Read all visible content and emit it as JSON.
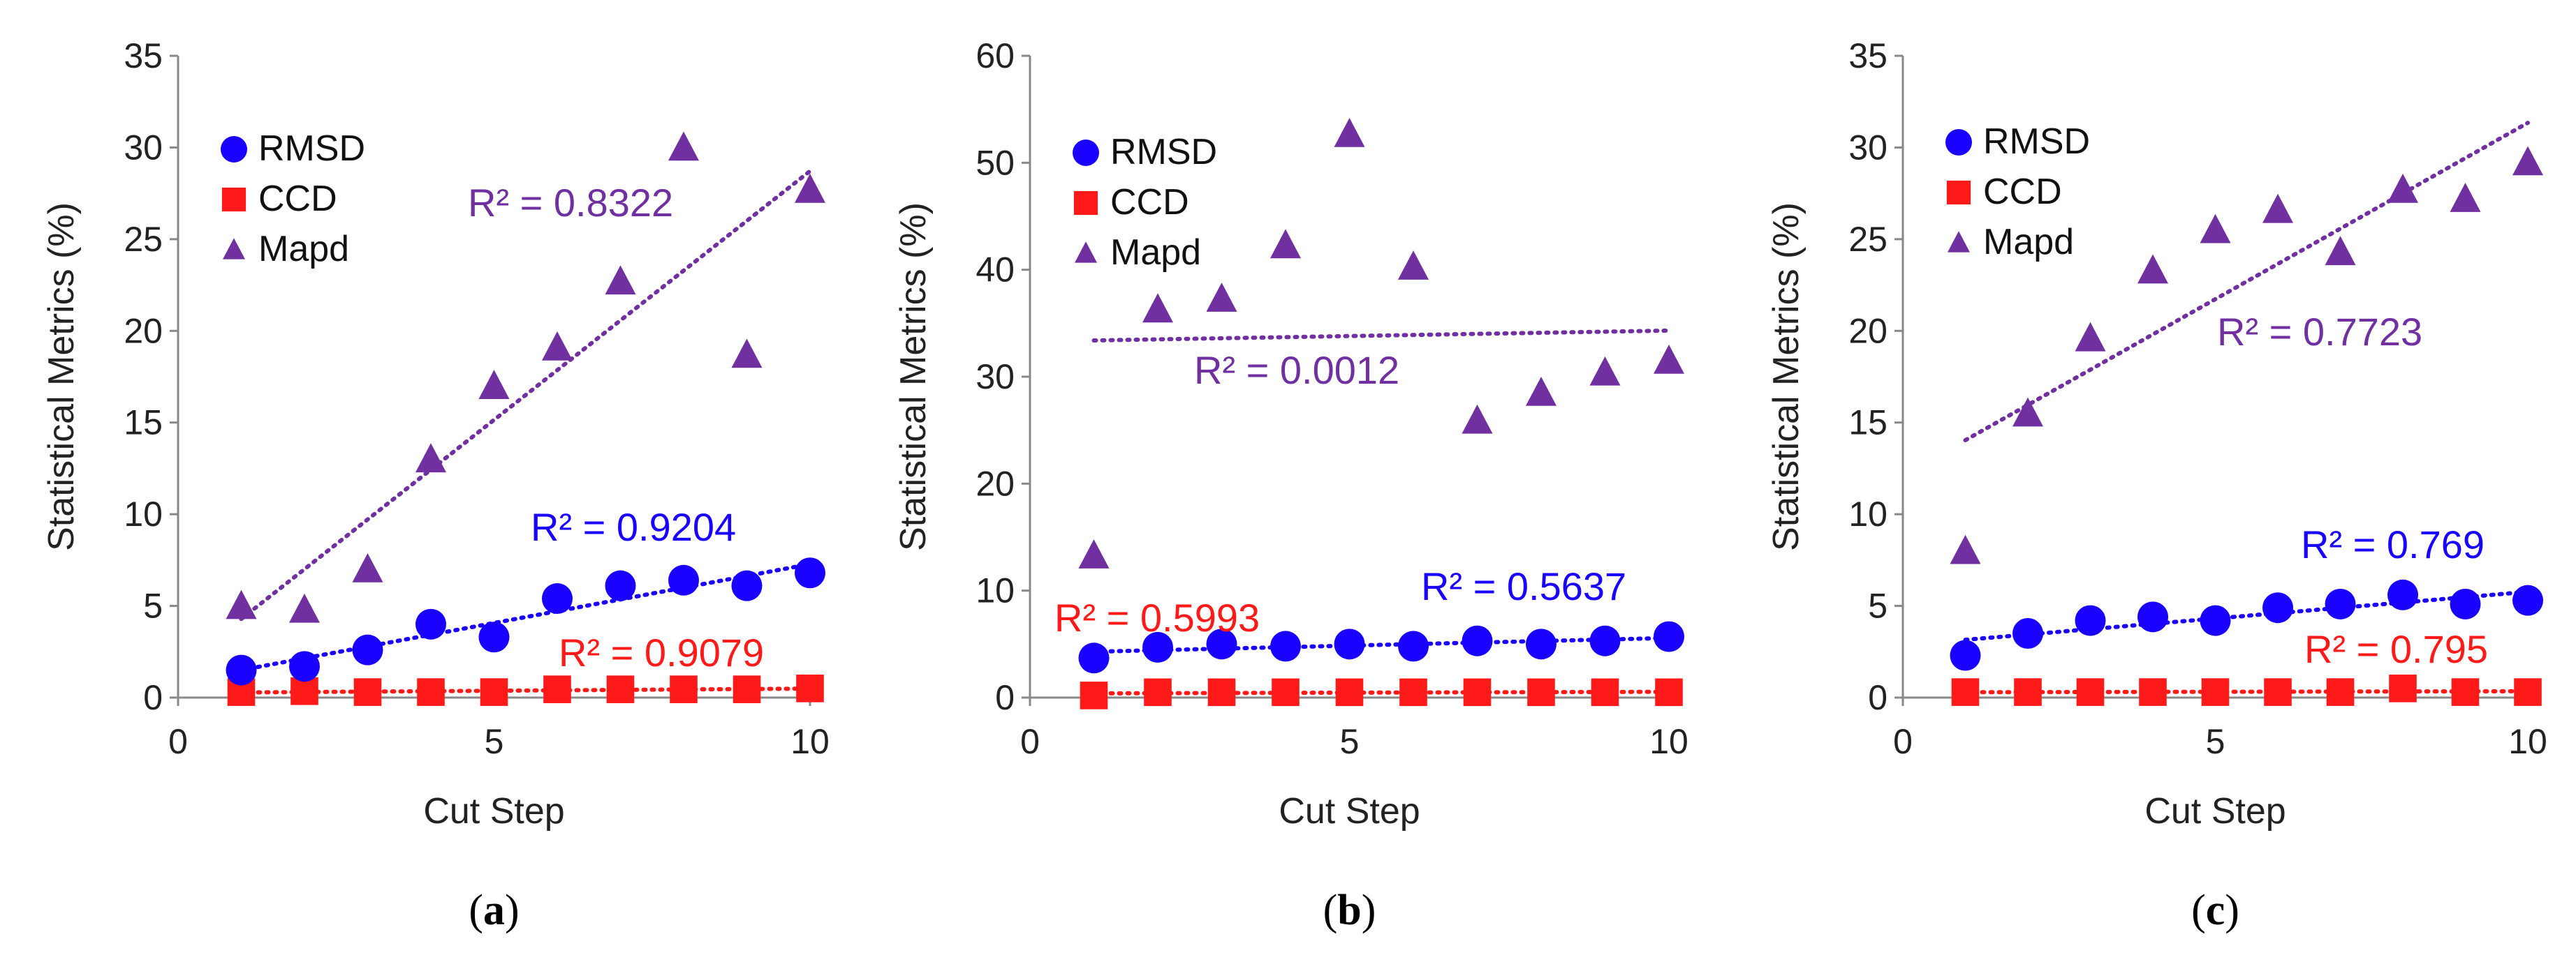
{
  "colors": {
    "rmsd": "#1a00ff",
    "ccd": "#ff1a1a",
    "mapd": "#7030a0"
  },
  "chart_data": [
    {
      "type": "scatter",
      "panel_label": "a",
      "xlabel": "Cut Step",
      "ylabel": "Statistical Metrics (%)",
      "xlim": [
        0,
        10
      ],
      "ylim": [
        0,
        35
      ],
      "xticks": [
        0,
        5,
        10
      ],
      "yticks": [
        0,
        5,
        10,
        15,
        20,
        25,
        30,
        35
      ],
      "legend_position": "top-left",
      "grid": false,
      "series": [
        {
          "name": "RMSD",
          "x": [
            1,
            2,
            3,
            4,
            5,
            6,
            7,
            8,
            9,
            10
          ],
          "y": [
            1.5,
            1.7,
            2.6,
            4.0,
            3.3,
            5.4,
            6.1,
            6.4,
            6.1,
            6.8
          ]
        },
        {
          "name": "CCD",
          "x": [
            1,
            2,
            3,
            4,
            5,
            6,
            7,
            8,
            9,
            10
          ],
          "y": [
            0.3,
            0.35,
            0.3,
            0.3,
            0.3,
            0.45,
            0.45,
            0.45,
            0.45,
            0.5
          ]
        },
        {
          "name": "Mapd",
          "x": [
            1,
            2,
            3,
            4,
            5,
            6,
            7,
            8,
            9,
            10
          ],
          "y": [
            5.0,
            4.8,
            7.0,
            13.0,
            17.0,
            19.1,
            22.7,
            30.0,
            18.7,
            27.7
          ]
        }
      ],
      "annotations": [
        {
          "series": "Mapd",
          "text": "R² = 0.8322"
        },
        {
          "series": "RMSD",
          "text": "R² = 0.9204"
        },
        {
          "series": "CCD",
          "text": "R² = 0.9079"
        }
      ]
    },
    {
      "type": "scatter",
      "panel_label": "b",
      "xlabel": "Cut Step",
      "ylabel": "Statistical Metrics (%)",
      "xlim": [
        0,
        10
      ],
      "ylim": [
        0,
        60
      ],
      "xticks": [
        0,
        5,
        10
      ],
      "yticks": [
        0,
        10,
        20,
        30,
        40,
        50,
        60
      ],
      "legend_position": "top-left",
      "grid": false,
      "series": [
        {
          "name": "RMSD",
          "x": [
            1,
            2,
            3,
            4,
            5,
            6,
            7,
            8,
            9,
            10
          ],
          "y": [
            3.7,
            4.7,
            5.0,
            4.8,
            5.0,
            4.8,
            5.3,
            5.0,
            5.3,
            5.7
          ]
        },
        {
          "name": "CCD",
          "x": [
            1,
            2,
            3,
            4,
            5,
            6,
            7,
            8,
            9,
            10
          ],
          "y": [
            0.2,
            0.5,
            0.5,
            0.5,
            0.5,
            0.5,
            0.5,
            0.5,
            0.5,
            0.5
          ]
        },
        {
          "name": "Mapd",
          "x": [
            1,
            2,
            3,
            4,
            5,
            6,
            7,
            8,
            9,
            10
          ],
          "y": [
            13.3,
            36.3,
            37.3,
            42.3,
            52.7,
            40.3,
            25.9,
            28.5,
            30.4,
            31.5
          ]
        }
      ],
      "annotations": [
        {
          "series": "Mapd",
          "text": "R² = 0.0012"
        },
        {
          "series": "CCD",
          "text": "R² = 0.5993"
        },
        {
          "series": "RMSD",
          "text": "R² = 0.5637"
        }
      ]
    },
    {
      "type": "scatter",
      "panel_label": "c",
      "xlabel": "Cut Step",
      "ylabel": "Statistical Metrics (%)",
      "xlim": [
        0,
        10
      ],
      "ylim": [
        0,
        35
      ],
      "xticks": [
        0,
        5,
        10
      ],
      "yticks": [
        0,
        5,
        10,
        15,
        20,
        25,
        30,
        35
      ],
      "legend_position": "top-left",
      "grid": false,
      "series": [
        {
          "name": "RMSD",
          "x": [
            1,
            2,
            3,
            4,
            5,
            6,
            7,
            8,
            9,
            10
          ],
          "y": [
            2.3,
            3.5,
            4.2,
            4.4,
            4.2,
            4.9,
            5.1,
            5.6,
            5.1,
            5.3
          ]
        },
        {
          "name": "CCD",
          "x": [
            1,
            2,
            3,
            4,
            5,
            6,
            7,
            8,
            9,
            10
          ],
          "y": [
            0.3,
            0.3,
            0.3,
            0.3,
            0.3,
            0.3,
            0.3,
            0.5,
            0.3,
            0.3
          ]
        },
        {
          "name": "Mapd",
          "x": [
            1,
            2,
            3,
            4,
            5,
            6,
            7,
            8,
            9,
            10
          ],
          "y": [
            8.0,
            15.5,
            19.6,
            23.3,
            25.5,
            26.6,
            24.3,
            27.7,
            27.2,
            29.2
          ]
        }
      ],
      "annotations": [
        {
          "series": "Mapd",
          "text": "R² = 0.7723"
        },
        {
          "series": "RMSD",
          "text": "R² = 0.769"
        },
        {
          "series": "CCD",
          "text": "R² = 0.795"
        }
      ]
    }
  ]
}
